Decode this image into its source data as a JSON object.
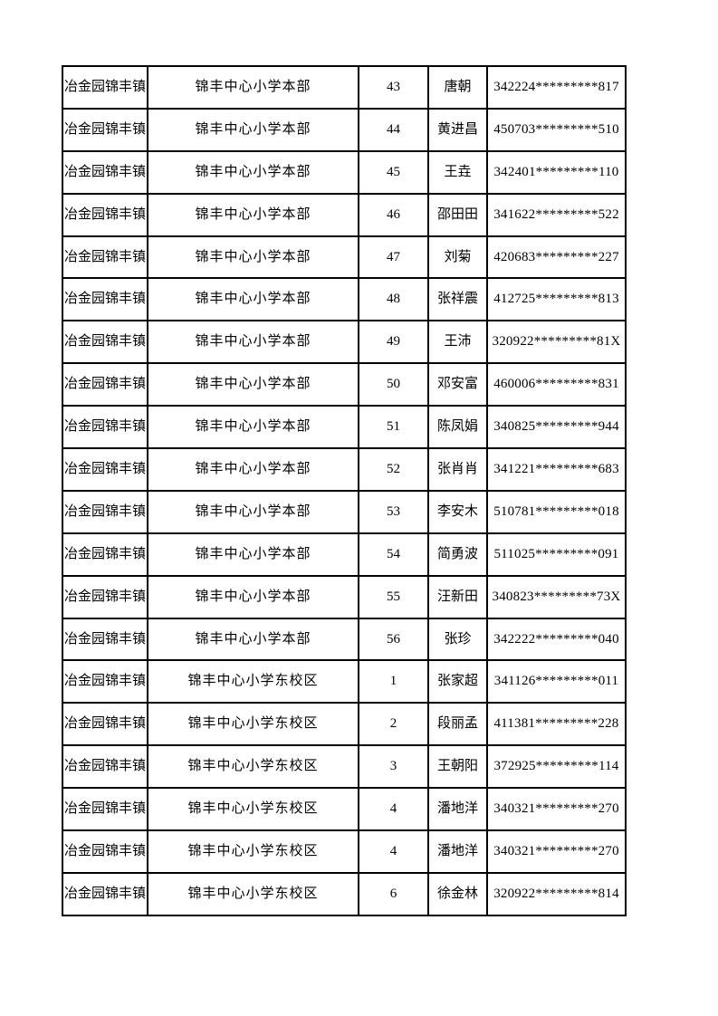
{
  "document": {
    "background_color": "#ffffff",
    "text_color": "#000000",
    "border_color": "#000000"
  },
  "table": {
    "rows": [
      {
        "town": "冶金园锦丰镇",
        "school": "锦丰中心小学本部",
        "number": "43",
        "name": "唐朝",
        "id": "342224*********817"
      },
      {
        "town": "冶金园锦丰镇",
        "school": "锦丰中心小学本部",
        "number": "44",
        "name": "黄进昌",
        "id": "450703*********510"
      },
      {
        "town": "冶金园锦丰镇",
        "school": "锦丰中心小学本部",
        "number": "45",
        "name": "王垚",
        "id": "342401*********110"
      },
      {
        "town": "冶金园锦丰镇",
        "school": "锦丰中心小学本部",
        "number": "46",
        "name": "邵田田",
        "id": "341622*********522"
      },
      {
        "town": "冶金园锦丰镇",
        "school": "锦丰中心小学本部",
        "number": "47",
        "name": "刘菊",
        "id": "420683*********227"
      },
      {
        "town": "冶金园锦丰镇",
        "school": "锦丰中心小学本部",
        "number": "48",
        "name": "张祥震",
        "id": "412725*********813"
      },
      {
        "town": "冶金园锦丰镇",
        "school": "锦丰中心小学本部",
        "number": "49",
        "name": "王沛",
        "id": "320922*********81X"
      },
      {
        "town": "冶金园锦丰镇",
        "school": "锦丰中心小学本部",
        "number": "50",
        "name": "邓安富",
        "id": "460006*********831"
      },
      {
        "town": "冶金园锦丰镇",
        "school": "锦丰中心小学本部",
        "number": "51",
        "name": "陈凤娟",
        "id": "340825*********944"
      },
      {
        "town": "冶金园锦丰镇",
        "school": "锦丰中心小学本部",
        "number": "52",
        "name": "张肖肖",
        "id": "341221*********683"
      },
      {
        "town": "冶金园锦丰镇",
        "school": "锦丰中心小学本部",
        "number": "53",
        "name": "李安木",
        "id": "510781*********018"
      },
      {
        "town": "冶金园锦丰镇",
        "school": "锦丰中心小学本部",
        "number": "54",
        "name": "简勇波",
        "id": "511025*********091"
      },
      {
        "town": "冶金园锦丰镇",
        "school": "锦丰中心小学本部",
        "number": "55",
        "name": "汪新田",
        "id": "340823*********73X"
      },
      {
        "town": "冶金园锦丰镇",
        "school": "锦丰中心小学本部",
        "number": "56",
        "name": "张珍",
        "id": "342222*********040"
      },
      {
        "town": "冶金园锦丰镇",
        "school": "锦丰中心小学东校区",
        "number": "1",
        "name": "张家超",
        "id": "341126*********011"
      },
      {
        "town": "冶金园锦丰镇",
        "school": "锦丰中心小学东校区",
        "number": "2",
        "name": "段丽孟",
        "id": "411381*********228"
      },
      {
        "town": "冶金园锦丰镇",
        "school": "锦丰中心小学东校区",
        "number": "3",
        "name": "王朝阳",
        "id": "372925*********114"
      },
      {
        "town": "冶金园锦丰镇",
        "school": "锦丰中心小学东校区",
        "number": "4",
        "name": "潘地洋",
        "id": "340321*********270"
      },
      {
        "town": "冶金园锦丰镇",
        "school": "锦丰中心小学东校区",
        "number": "4",
        "name": "潘地洋",
        "id": "340321*********270"
      },
      {
        "town": "冶金园锦丰镇",
        "school": "锦丰中心小学东校区",
        "number": "6",
        "name": "徐金林",
        "id": "320922*********814"
      }
    ]
  }
}
